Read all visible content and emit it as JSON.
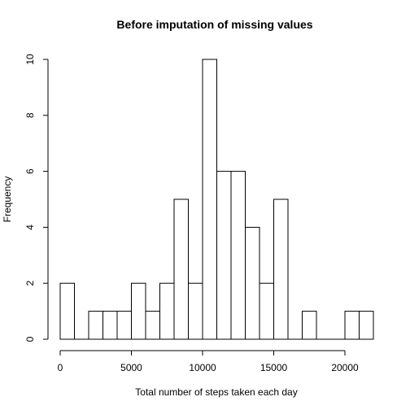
{
  "chart_data": {
    "type": "bar",
    "title": "Before imputation of missing values",
    "xlabel": "Total number  of steps taken each day",
    "ylabel": "Frequency",
    "bin_width": 1000,
    "bin_starts": [
      0,
      1000,
      2000,
      3000,
      4000,
      5000,
      6000,
      7000,
      8000,
      9000,
      10000,
      11000,
      12000,
      13000,
      14000,
      15000,
      16000,
      17000,
      18000,
      19000,
      20000,
      21000
    ],
    "values": [
      2,
      0,
      1,
      1,
      1,
      2,
      1,
      2,
      5,
      2,
      10,
      6,
      6,
      4,
      2,
      5,
      0,
      1,
      0,
      0,
      1,
      1
    ],
    "xlim": [
      0,
      22000
    ],
    "ylim": [
      0,
      10
    ],
    "x_ticks": [
      0,
      5000,
      10000,
      15000,
      20000
    ],
    "x_tick_labels": [
      "0",
      "5000",
      "10000",
      "15000",
      "20000"
    ],
    "y_ticks": [
      0,
      2,
      4,
      6,
      8,
      10
    ],
    "y_tick_labels": [
      "0",
      "2",
      "4",
      "6",
      "8",
      "10"
    ],
    "grid": false
  }
}
